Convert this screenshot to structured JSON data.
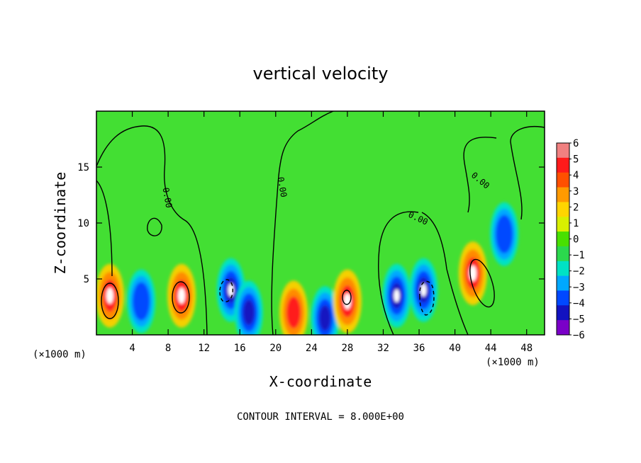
{
  "chart_data": {
    "type": "heatmap",
    "title": "vertical velocity",
    "xlabel": "X-coordinate",
    "ylabel": "Z-coordinate",
    "x_unit": "(×1000 m)",
    "x_unit_right": "(×1000 m)",
    "xlim": [
      0,
      50
    ],
    "ylim": [
      0,
      20
    ],
    "x_ticks": [
      "4",
      "8",
      "12",
      "16",
      "20",
      "24",
      "28",
      "32",
      "36",
      "40",
      "44",
      "48"
    ],
    "y_ticks": [
      "5",
      "10",
      "15"
    ],
    "colorbar": {
      "levels": [
        "6",
        "5",
        "4",
        "3",
        "2",
        "1",
        "0",
        "−1",
        "−2",
        "−3",
        "−4",
        "−5",
        "−6"
      ],
      "colors": [
        "#f08080",
        "#ff1a1a",
        "#ff5000",
        "#ff9a00",
        "#ffd500",
        "#d8ef00",
        "#48e000",
        "#2bd84d",
        "#00e2c4",
        "#00a8ff",
        "#0048ff",
        "#1212c0",
        "#7a00c8"
      ]
    },
    "contour_labels": [
      "0.00",
      "0.00",
      "0.00",
      "0.00"
    ],
    "footer": "CONTOUR INTERVAL = 8.000E+00",
    "grid": false,
    "colorbar_placement": "right",
    "features": [
      {
        "x": 1.5,
        "z": 3.5,
        "w": 6
      },
      {
        "x": 5.0,
        "z": 3.0,
        "w": -3
      },
      {
        "x": 9.5,
        "z": 3.5,
        "w": 6
      },
      {
        "x": 15.0,
        "z": 4.0,
        "w": -6
      },
      {
        "x": 17.0,
        "z": 2.0,
        "w": -5
      },
      {
        "x": 22.0,
        "z": 2.0,
        "w": 4
      },
      {
        "x": 25.5,
        "z": 1.5,
        "w": -5
      },
      {
        "x": 28.0,
        "z": 3.0,
        "w": 6
      },
      {
        "x": 33.5,
        "z": 3.5,
        "w": -6
      },
      {
        "x": 36.5,
        "z": 4.0,
        "w": -6
      },
      {
        "x": 42.0,
        "z": 5.5,
        "w": 6
      },
      {
        "x": 45.5,
        "z": 9.0,
        "w": -3
      }
    ]
  }
}
